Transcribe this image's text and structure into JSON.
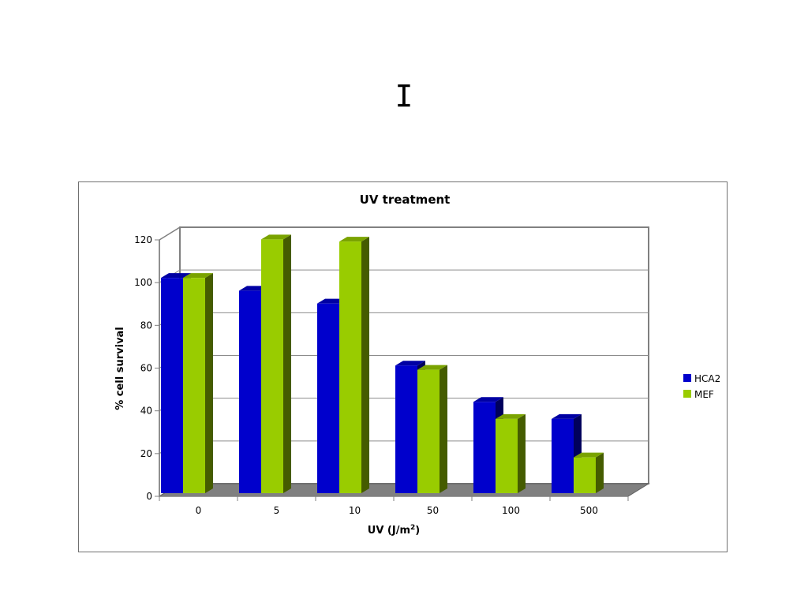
{
  "slide": {
    "title": "I"
  },
  "chart_data": {
    "type": "bar",
    "title": "UV treatment",
    "xlabel": "UV (J/m",
    "xlabel_superscript": "2",
    "xlabel_suffix": ")",
    "ylabel": "% cell survival",
    "categories": [
      "0",
      "5",
      "10",
      "50",
      "100",
      "500"
    ],
    "series": [
      {
        "name": "HCA2",
        "values": [
          100,
          94,
          88,
          59,
          42,
          34
        ],
        "color": "#0000CC"
      },
      {
        "name": "MEF",
        "values": [
          100,
          118,
          117,
          57,
          34,
          16
        ],
        "color": "#99CC00"
      }
    ],
    "ylim": [
      0,
      120
    ],
    "yticks": [
      0,
      20,
      40,
      60,
      80,
      100,
      120
    ],
    "grid": true,
    "legend": "right",
    "style": "3d-clustered-column"
  }
}
